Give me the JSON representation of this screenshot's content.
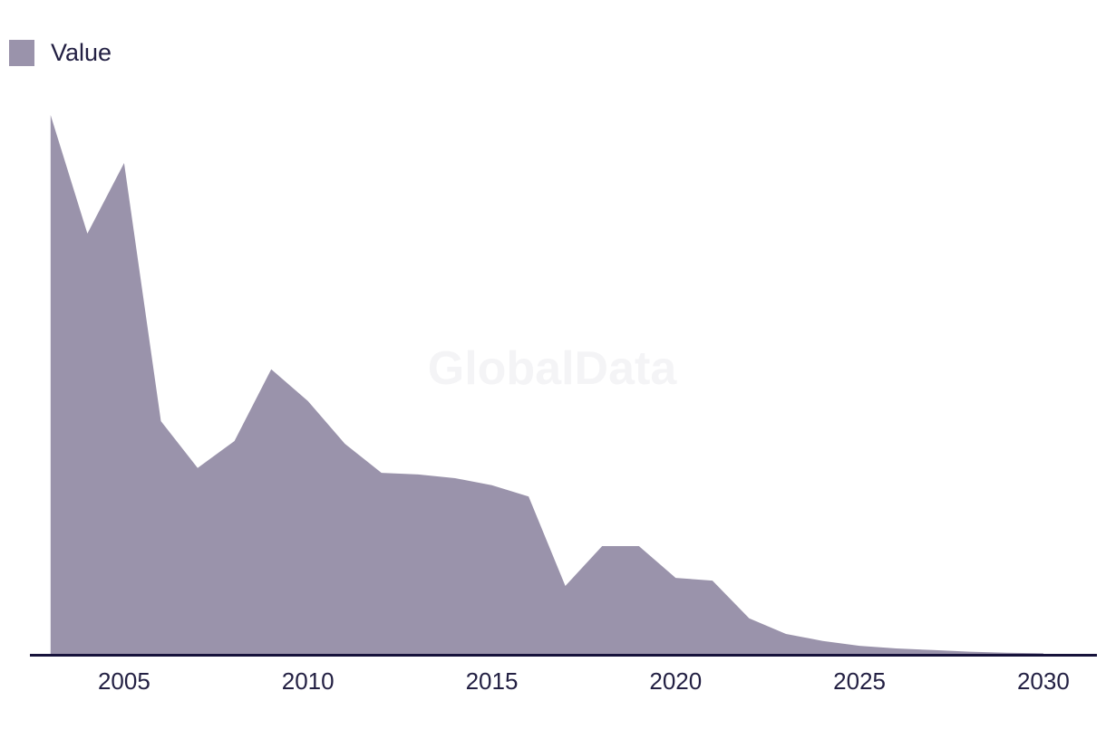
{
  "legend": {
    "label": "Value",
    "swatch_color": "#9a93ab"
  },
  "watermark": {
    "text": "GlobalData"
  },
  "x_axis": {
    "tick_labels": [
      "2005",
      "2010",
      "2015",
      "2020",
      "2025",
      "2030"
    ],
    "line_color": "#16123b",
    "label_color": "#232043"
  },
  "chart_data": {
    "type": "area",
    "title": "",
    "xlabel": "",
    "ylabel": "",
    "x": [
      2003,
      2004,
      2005,
      2006,
      2007,
      2008,
      2009,
      2010,
      2011,
      2012,
      2013,
      2014,
      2015,
      2016,
      2017,
      2018,
      2019,
      2020,
      2021,
      2022,
      2023,
      2024,
      2025,
      2026,
      2027,
      2028,
      2029,
      2030
    ],
    "series": [
      {
        "name": "Value",
        "color": "#9a93ab",
        "values": [
          100,
          78,
          91.1,
          43.2,
          34.5,
          39.5,
          52.8,
          46.9,
          39.0,
          33.6,
          33.3,
          32.6,
          31.3,
          29.2,
          12.6,
          20.0,
          20.0,
          14.1,
          13.6,
          6.6,
          3.7,
          2.4,
          1.5,
          1.0,
          0.7,
          0.4,
          0.2,
          0.1
        ]
      }
    ],
    "x_ticks": [
      2005,
      2010,
      2015,
      2020,
      2025,
      2030
    ],
    "ylim": [
      0,
      100
    ],
    "y_axis_visible": false,
    "value_units": "percent of 2003 peak (no y-axis shown in figure)",
    "grid": false,
    "legend_position": "top-left",
    "legend_entries": [
      "Value"
    ],
    "watermark": "GlobalData",
    "xlim": [
      2003,
      2030
    ]
  }
}
